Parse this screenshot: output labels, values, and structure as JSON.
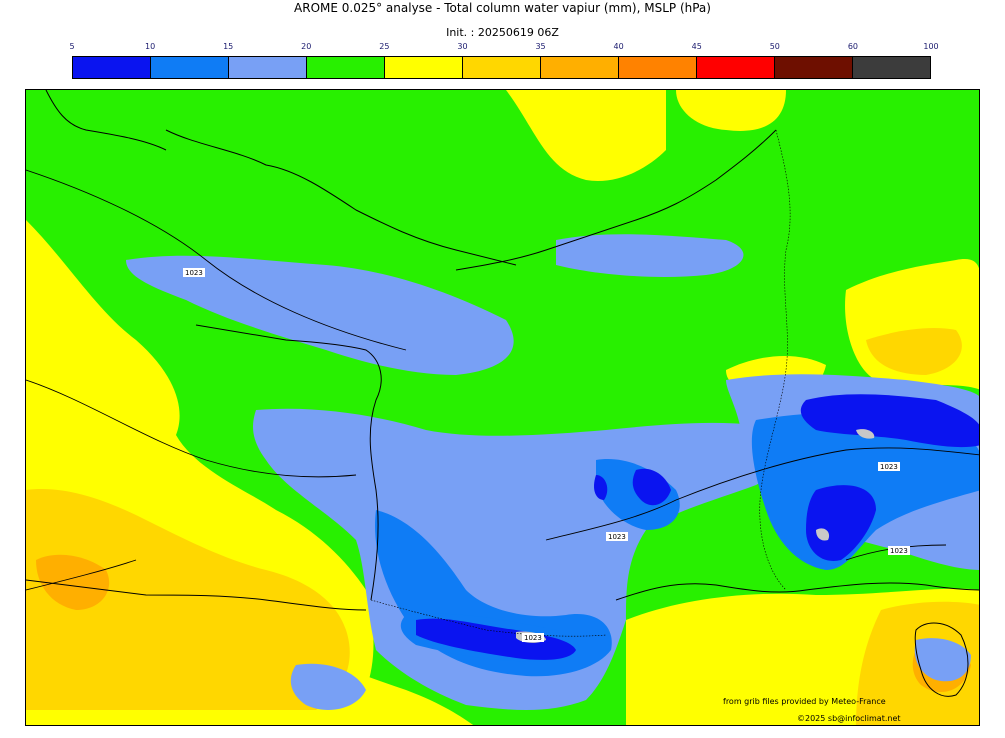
{
  "title": "AROME 0.025° analyse - Total column water vapiur (mm), MSLP (hPa)",
  "subtitle": "Init. : 20250619 06Z",
  "colorbar": {
    "ticks": [
      "5",
      "10",
      "15",
      "20",
      "25",
      "30",
      "35",
      "40",
      "45",
      "50",
      "60",
      "100"
    ],
    "colors": [
      "#0a14f0",
      "#0f7cf5",
      "#78a0f5",
      "#28f000",
      "#ffff00",
      "#ffd700",
      "#ffaf00",
      "#ff8200",
      "#ff0000",
      "#6e0f00",
      "#3c3c3c"
    ]
  },
  "isobars": {
    "labels": [
      "1023",
      "1023",
      "1023",
      "1023",
      "1023"
    ]
  },
  "credits": {
    "source": "from grib files provided by Meteo-France",
    "copyright": "©2025 sb@infoclimat.net"
  }
}
